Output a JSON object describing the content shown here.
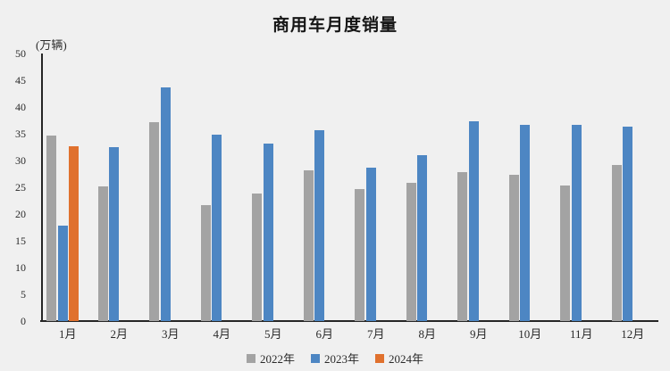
{
  "colors": {
    "series_2022": "#A3A3A3",
    "series_2023": "#4D86C3",
    "series_2024": "#E0712E",
    "axis": "#262626",
    "background": "#F0F0F0",
    "text": "#2a2a2a"
  },
  "chart_data": {
    "type": "bar",
    "title": "商用车月度销量",
    "ylabel": "(万辆)",
    "xlabel": "",
    "ylim": [
      0,
      50
    ],
    "yticks": [
      0,
      5,
      10,
      15,
      20,
      25,
      30,
      35,
      40,
      45,
      50
    ],
    "grid": false,
    "legend_position": "bottom",
    "categories": [
      "1月",
      "2月",
      "3月",
      "4月",
      "5月",
      "6月",
      "7月",
      "8月",
      "9月",
      "10月",
      "11月",
      "12月"
    ],
    "series": [
      {
        "name": "2022年",
        "color": "#A3A3A3",
        "values": [
          34.6,
          25.1,
          37.2,
          21.6,
          23.9,
          28.1,
          24.6,
          25.8,
          27.9,
          27.4,
          25.3,
          29.1
        ]
      },
      {
        "name": "2023年",
        "color": "#4D86C3",
        "values": [
          17.9,
          32.5,
          43.7,
          34.9,
          33.1,
          35.6,
          28.7,
          31.0,
          37.3,
          36.6,
          36.7,
          36.4
        ]
      },
      {
        "name": "2024年",
        "color": "#E0712E",
        "values": [
          32.6,
          null,
          null,
          null,
          null,
          null,
          null,
          null,
          null,
          null,
          null,
          null
        ]
      }
    ]
  }
}
